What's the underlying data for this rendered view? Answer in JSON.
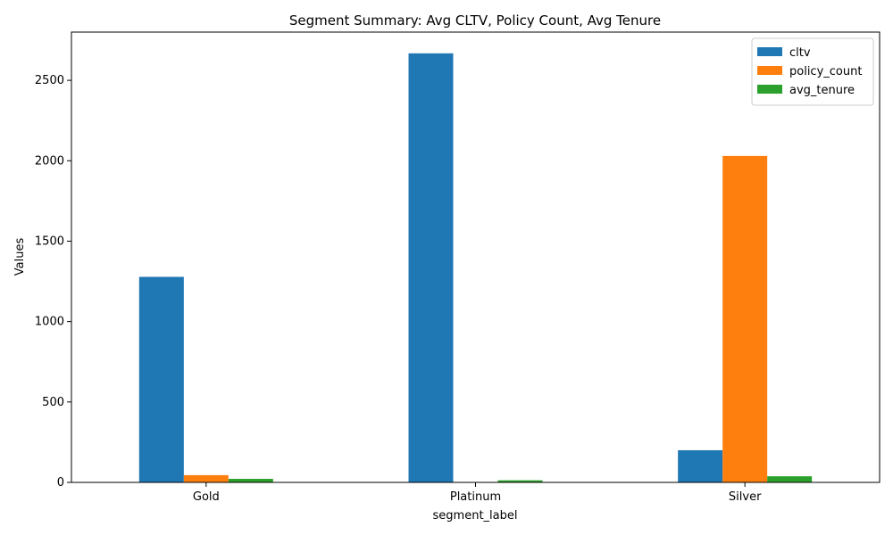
{
  "chart_data": {
    "type": "bar",
    "title": "Segment Summary: Avg CLTV, Policy Count, Avg Tenure",
    "xlabel": "segment_label",
    "ylabel": "Values",
    "categories": [
      "Gold",
      "Platinum",
      "Silver"
    ],
    "ylim": [
      0,
      2800
    ],
    "yticks": [
      0,
      500,
      1000,
      1500,
      2000,
      2500
    ],
    "grid": false,
    "legend_position": "top-right",
    "series": [
      {
        "name": "cltv",
        "color": "#1f77b4",
        "values": [
          1278,
          2668,
          200
        ]
      },
      {
        "name": "policy_count",
        "color": "#ff7f0e",
        "values": [
          45,
          2,
          2030
        ]
      },
      {
        "name": "avg_tenure",
        "color": "#2ca02c",
        "values": [
          22,
          13,
          38
        ]
      }
    ]
  }
}
